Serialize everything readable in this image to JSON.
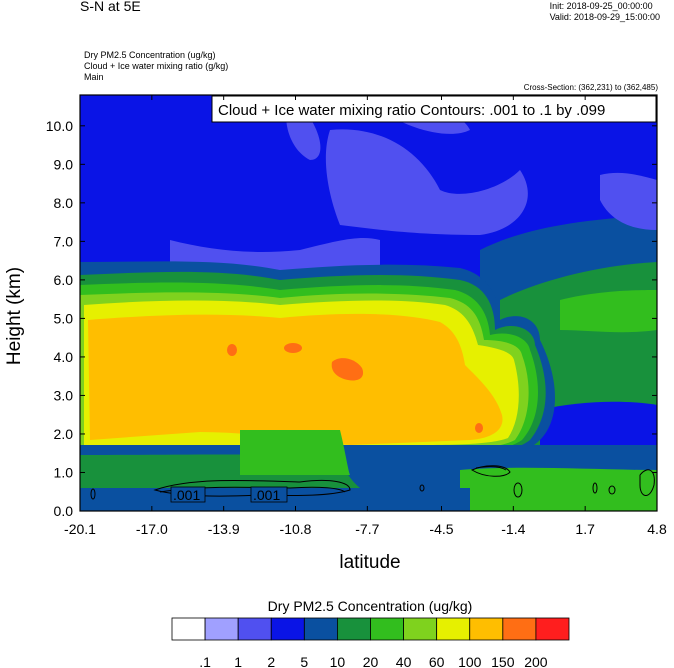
{
  "header": {
    "title": "S-N at 5E",
    "init": "Init: 2018-09-25_00:00:00",
    "valid": "Valid: 2018-09-29_15:00:00",
    "var1": "Dry PM2.5 Concentration   (ug/kg)",
    "var2": "Cloud + Ice water mixing ratio   (g/kg)",
    "var3": "Main",
    "cross_section": "Cross-Section: (362,231) to (362,485)"
  },
  "chart_data": {
    "type": "heatmap",
    "title": "S-N at 5E",
    "xlabel": "latitude",
    "ylabel": "Height (km)",
    "xlim": [
      -20.1,
      4.8
    ],
    "ylim": [
      0.0,
      10.8
    ],
    "x_ticks": [
      "-20.1",
      "-17.0",
      "-13.9",
      "-10.8",
      "-7.7",
      "-4.5",
      "-1.4",
      "1.7",
      "4.8"
    ],
    "y_ticks": [
      "0.0",
      "1.0",
      "2.0",
      "3.0",
      "4.0",
      "5.0",
      "6.0",
      "7.0",
      "8.0",
      "9.0",
      "10.0"
    ],
    "contour_annotation": "Cloud + Ice water mixing ratio Contours: .001 to .1 by .099",
    "contour_labels": [
      ".001",
      ".001"
    ],
    "colorbar": {
      "title": "Dry PM2.5 Concentration  (ug/kg)",
      "levels": [
        ".1",
        "1",
        "2",
        "5",
        "10",
        "20",
        "40",
        "60",
        "100",
        "150",
        "200"
      ],
      "colors": [
        "#ffffff",
        "#a0a0ff",
        "#5050f0",
        "#0a14e6",
        "#0a50a0",
        "#18913c",
        "#32be1e",
        "#7fd21e",
        "#e6f000",
        "#ffbe00",
        "#ff6e14",
        "#ff1e1e"
      ]
    }
  }
}
